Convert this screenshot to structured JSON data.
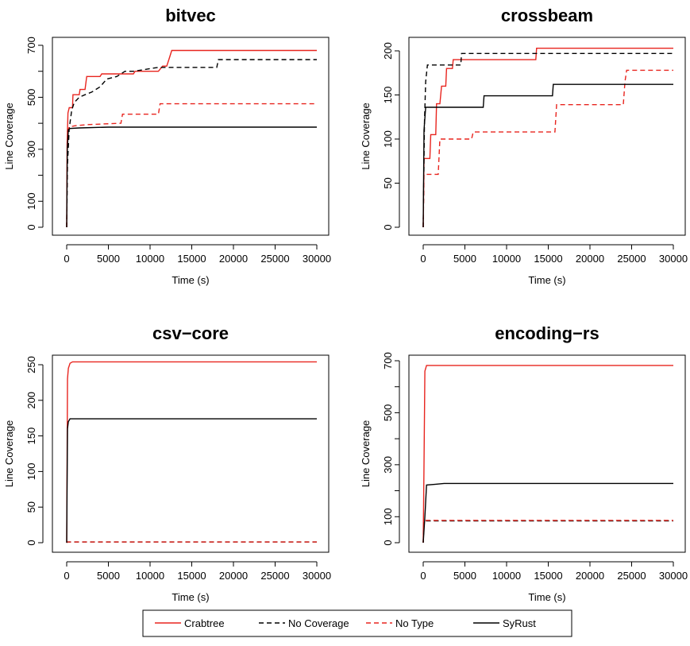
{
  "chart_data": [
    {
      "type": "line",
      "title": "bitvec",
      "xlabel": "Time (s)",
      "ylabel": "Line Coverage",
      "xlim": [
        0,
        30000
      ],
      "ylim": [
        0,
        700
      ],
      "xticks": [
        "0",
        "5000",
        "10000",
        "15000",
        "20000",
        "25000",
        "30000"
      ],
      "yticks": [
        "0",
        "100",
        "300",
        "500",
        "700"
      ],
      "yminor": [
        200,
        400,
        600
      ],
      "series": [
        {
          "name": "Crabtree",
          "points": [
            [
              0,
              0
            ],
            [
              50,
              320
            ],
            [
              150,
              440
            ],
            [
              300,
              460
            ],
            [
              700,
              460
            ],
            [
              750,
              510
            ],
            [
              1500,
              510
            ],
            [
              1600,
              530
            ],
            [
              2200,
              530
            ],
            [
              2400,
              580
            ],
            [
              4000,
              580
            ],
            [
              4200,
              590
            ],
            [
              8000,
              590
            ],
            [
              8200,
              600
            ],
            [
              11000,
              600
            ],
            [
              11500,
              620
            ],
            [
              12000,
              620
            ],
            [
              12300,
              650
            ],
            [
              12600,
              680
            ],
            [
              30000,
              680
            ]
          ]
        },
        {
          "name": "No Coverage",
          "points": [
            [
              0,
              0
            ],
            [
              100,
              240
            ],
            [
              300,
              380
            ],
            [
              600,
              450
            ],
            [
              900,
              480
            ],
            [
              1500,
              500
            ],
            [
              2200,
              510
            ],
            [
              3000,
              520
            ],
            [
              4000,
              540
            ],
            [
              4800,
              570
            ],
            [
              6000,
              580
            ],
            [
              7000,
              600
            ],
            [
              8000,
              600
            ],
            [
              10000,
              610
            ],
            [
              11000,
              615
            ],
            [
              18000,
              615
            ],
            [
              18200,
              645
            ],
            [
              30000,
              645
            ]
          ]
        },
        {
          "name": "No Type",
          "points": [
            [
              0,
              0
            ],
            [
              100,
              370
            ],
            [
              300,
              385
            ],
            [
              900,
              390
            ],
            [
              2500,
              395
            ],
            [
              6500,
              400
            ],
            [
              6700,
              435
            ],
            [
              11000,
              435
            ],
            [
              11200,
              475
            ],
            [
              30000,
              475
            ]
          ]
        },
        {
          "name": "SyRust",
          "points": [
            [
              0,
              0
            ],
            [
              80,
              300
            ],
            [
              200,
              375
            ],
            [
              400,
              380
            ],
            [
              1500,
              382
            ],
            [
              5000,
              385
            ],
            [
              30000,
              385
            ]
          ]
        }
      ]
    },
    {
      "type": "line",
      "title": "crossbeam",
      "xlabel": "Time (s)",
      "ylabel": "Line Coverage",
      "xlim": [
        0,
        30000
      ],
      "ylim": [
        0,
        200
      ],
      "xticks": [
        "0",
        "5000",
        "10000",
        "15000",
        "20000",
        "25000",
        "30000"
      ],
      "yticks": [
        "0",
        "50",
        "100",
        "150",
        "200"
      ],
      "yminor": [],
      "series": [
        {
          "name": "Crabtree",
          "points": [
            [
              0,
              0
            ],
            [
              100,
              78
            ],
            [
              800,
              78
            ],
            [
              900,
              105
            ],
            [
              1500,
              105
            ],
            [
              1600,
              140
            ],
            [
              2000,
              140
            ],
            [
              2200,
              160
            ],
            [
              2700,
              160
            ],
            [
              2800,
              180
            ],
            [
              3500,
              180
            ],
            [
              3600,
              190
            ],
            [
              13500,
              190
            ],
            [
              13600,
              203
            ],
            [
              30000,
              203
            ]
          ]
        },
        {
          "name": "No Coverage",
          "points": [
            [
              0,
              0
            ],
            [
              150,
              120
            ],
            [
              300,
              165
            ],
            [
              500,
              184
            ],
            [
              4500,
              184
            ],
            [
              4600,
              197
            ],
            [
              30000,
              197
            ]
          ]
        },
        {
          "name": "No Type",
          "points": [
            [
              0,
              0
            ],
            [
              100,
              60
            ],
            [
              1800,
              60
            ],
            [
              2000,
              100
            ],
            [
              5800,
              100
            ],
            [
              6000,
              108
            ],
            [
              15800,
              108
            ],
            [
              16000,
              139
            ],
            [
              24000,
              139
            ],
            [
              24200,
              165
            ],
            [
              24400,
              178
            ],
            [
              30000,
              178
            ]
          ]
        },
        {
          "name": "SyRust",
          "points": [
            [
              0,
              0
            ],
            [
              100,
              110
            ],
            [
              300,
              136
            ],
            [
              7200,
              136
            ],
            [
              7300,
              149
            ],
            [
              15500,
              149
            ],
            [
              15600,
              162
            ],
            [
              30000,
              162
            ]
          ]
        }
      ]
    },
    {
      "type": "line",
      "title": "csv−core",
      "xlabel": "Time (s)",
      "ylabel": "Line Coverage",
      "xlim": [
        0,
        30000
      ],
      "ylim": [
        0,
        250
      ],
      "xticks": [
        "0",
        "5000",
        "10000",
        "15000",
        "20000",
        "25000",
        "30000"
      ],
      "yticks": [
        "0",
        "50",
        "100",
        "150",
        "200",
        "250"
      ],
      "yminor": [],
      "series": [
        {
          "name": "Crabtree",
          "points": [
            [
              0,
              0
            ],
            [
              100,
              230
            ],
            [
              200,
              245
            ],
            [
              400,
              252
            ],
            [
              700,
              254
            ],
            [
              30000,
              254
            ]
          ]
        },
        {
          "name": "No Coverage",
          "points": [
            [
              0,
              0
            ],
            [
              50,
              1
            ],
            [
              30000,
              1
            ]
          ]
        },
        {
          "name": "No Type",
          "points": [
            [
              0,
              0
            ],
            [
              50,
              1
            ],
            [
              30000,
              1
            ]
          ]
        },
        {
          "name": "SyRust",
          "points": [
            [
              0,
              0
            ],
            [
              100,
              160
            ],
            [
              200,
              170
            ],
            [
              400,
              174
            ],
            [
              30000,
              174
            ]
          ]
        }
      ]
    },
    {
      "type": "line",
      "title": "encoding−rs",
      "xlabel": "Time (s)",
      "ylabel": "Line Coverage",
      "xlim": [
        0,
        30000
      ],
      "ylim": [
        0,
        700
      ],
      "xticks": [
        "0",
        "5000",
        "10000",
        "15000",
        "20000",
        "25000",
        "30000"
      ],
      "yticks": [
        "0",
        "100",
        "300",
        "500",
        "700"
      ],
      "yminor": [
        200,
        400,
        600
      ],
      "series": [
        {
          "name": "Crabtree",
          "points": [
            [
              0,
              0
            ],
            [
              100,
              300
            ],
            [
              200,
              660
            ],
            [
              400,
              682
            ],
            [
              30000,
              682
            ]
          ]
        },
        {
          "name": "No Coverage",
          "points": [
            [
              0,
              0
            ],
            [
              100,
              84
            ],
            [
              30000,
              84
            ]
          ]
        },
        {
          "name": "No Type",
          "points": [
            [
              0,
              0
            ],
            [
              100,
              86
            ],
            [
              30000,
              86
            ]
          ]
        },
        {
          "name": "SyRust",
          "points": [
            [
              0,
              0
            ],
            [
              200,
              100
            ],
            [
              400,
              222
            ],
            [
              1500,
              225
            ],
            [
              2500,
              228
            ],
            [
              30000,
              228
            ]
          ]
        }
      ]
    }
  ],
  "legend": {
    "entries": [
      {
        "label": "Crabtree",
        "color": "#e8251f",
        "dash": "solid"
      },
      {
        "label": "No Coverage",
        "color": "#000000",
        "dash": "dashed"
      },
      {
        "label": "No Type",
        "color": "#e8251f",
        "dash": "dashed"
      },
      {
        "label": "SyRust",
        "color": "#000000",
        "dash": "solid"
      }
    ]
  }
}
